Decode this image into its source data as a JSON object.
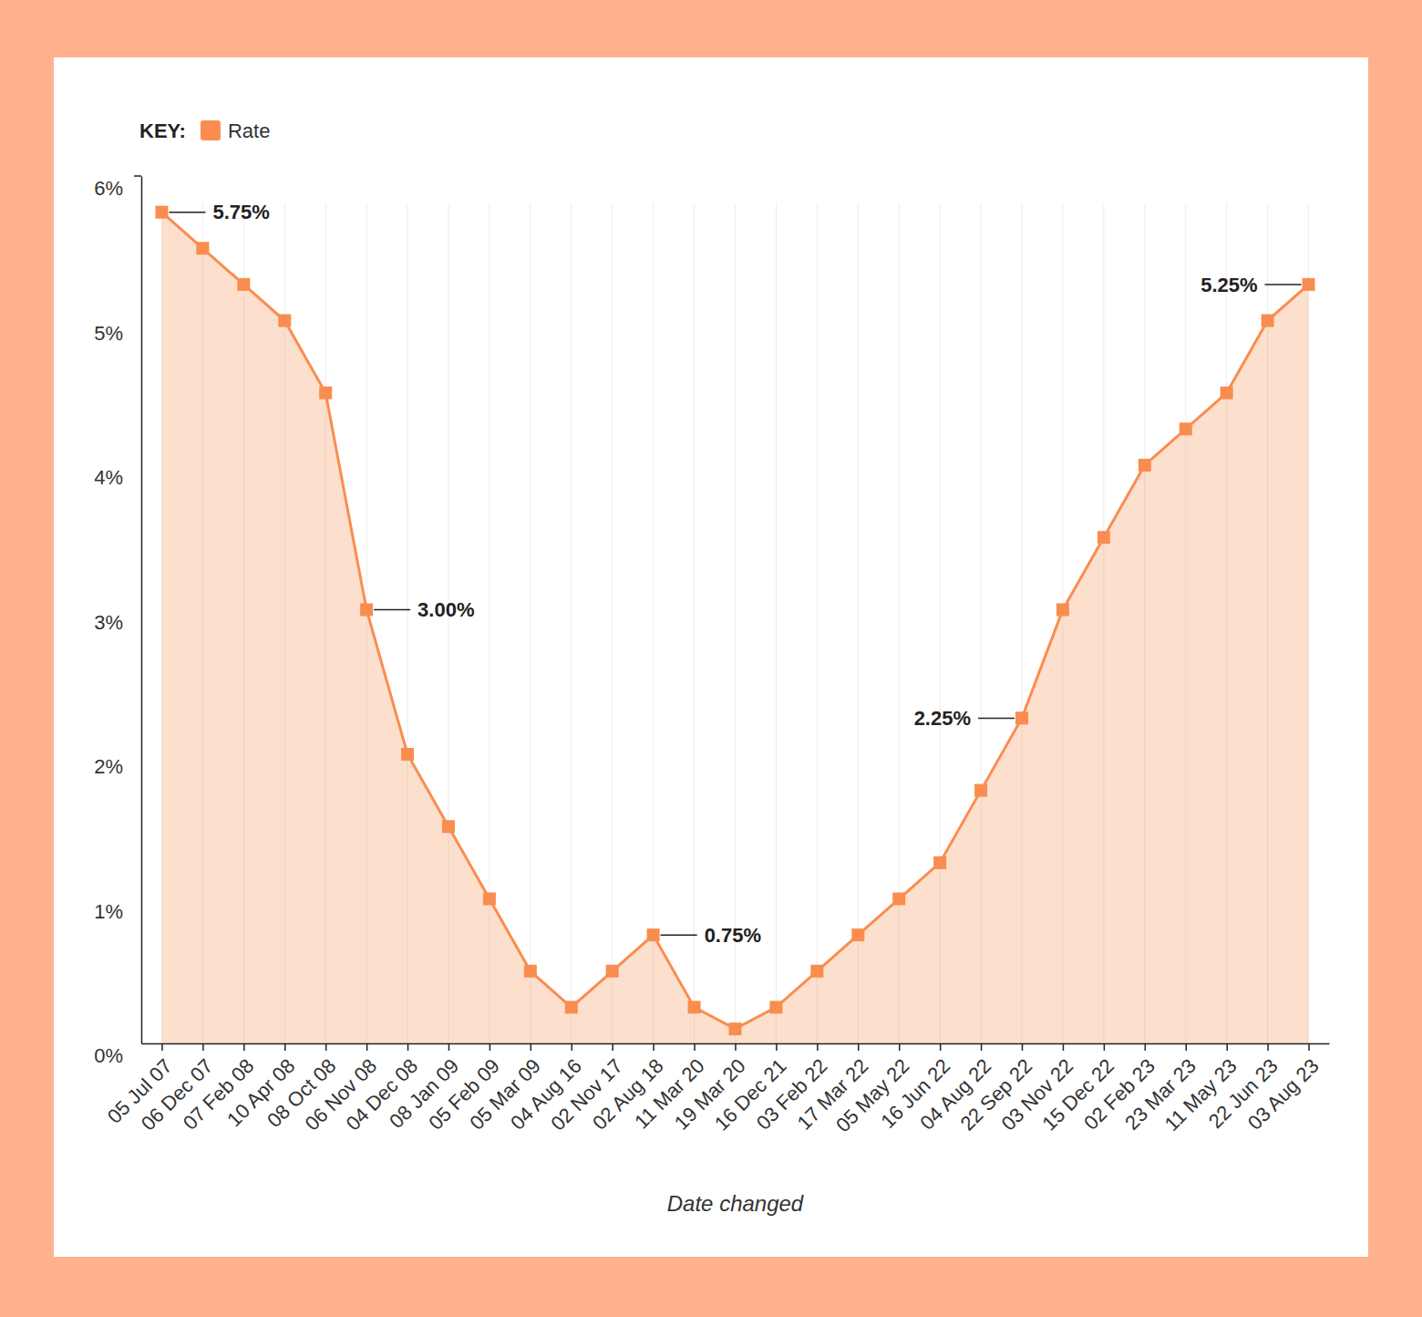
{
  "chart_data": {
    "type": "area",
    "x_label": "Date changed",
    "legend_title": "KEY:",
    "legend": "top-left",
    "grid": true,
    "categories": [
      "05 Jul 07",
      "06 Dec 07",
      "07 Feb 08",
      "10 Apr 08",
      "08 Oct 08",
      "06 Nov 08",
      "04 Dec 08",
      "08 Jan 09",
      "05 Feb 09",
      "05 Mar 09",
      "04 Aug 16",
      "02 Nov 17",
      "02 Aug 18",
      "11 Mar 20",
      "19 Mar 20",
      "16 Dec 21",
      "03 Feb 22",
      "17 Mar 22",
      "05 May 22",
      "16 Jun 22",
      "04 Aug 22",
      "22 Sep 22",
      "03 Nov 22",
      "15 Dec 22",
      "02 Feb 23",
      "23 Mar 23",
      "11 May 23",
      "22 Jun 23",
      "03 Aug 23"
    ],
    "series": [
      {
        "name": "Rate",
        "color": "#f98d4f",
        "marker": "square",
        "values": [
          5.75,
          5.5,
          5.25,
          5.0,
          4.5,
          3.0,
          2.0,
          1.5,
          1.0,
          0.5,
          0.25,
          0.5,
          0.75,
          0.25,
          0.1,
          0.25,
          0.5,
          0.75,
          1.0,
          1.25,
          1.75,
          2.25,
          3.0,
          3.5,
          4.0,
          4.25,
          4.5,
          5.0,
          5.25
        ]
      }
    ],
    "ylim": [
      0,
      6
    ],
    "yticks": [
      {
        "value": 0,
        "label": "0%"
      },
      {
        "value": 1,
        "label": "1%"
      },
      {
        "value": 2,
        "label": "2%"
      },
      {
        "value": 3,
        "label": "3%"
      },
      {
        "value": 4,
        "label": "4%"
      },
      {
        "value": 5,
        "label": "5%"
      },
      {
        "value": 6,
        "label": "6%"
      }
    ],
    "annotations": [
      {
        "text": "5.75%",
        "x": "05 Jul 07",
        "y": 5.75
      },
      {
        "text": "3.00%",
        "x": "06 Nov 08",
        "y": 3.0
      },
      {
        "text": "0.75%",
        "x": "02 Aug 18",
        "y": 0.75
      },
      {
        "text": "2.25%",
        "x": "22 Sep 22",
        "y": 2.25
      },
      {
        "text": "5.25%",
        "x": "03 Aug 23",
        "y": 5.25
      }
    ]
  }
}
